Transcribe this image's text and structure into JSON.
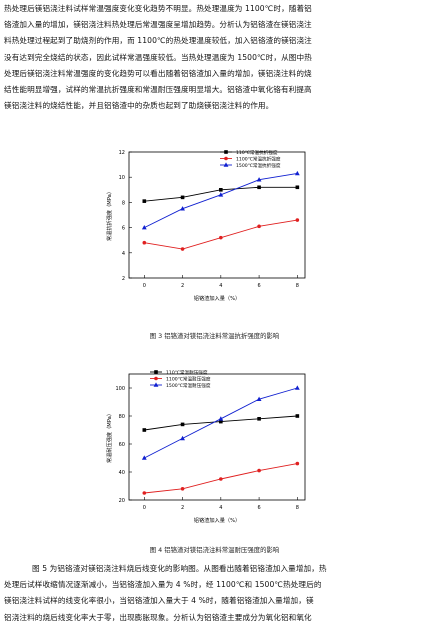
{
  "top_paragraph": [
    "热处理后镁铝浇注料试样常温强度变化变化趋势不明显。热处理温度为 1100℃时，随着铝",
    "铬渣加入量的增加，镁铝浇注料热处理后常温强度呈增加趋势。分析认为铝铬渣在镁铝浇注",
    "料热处理过程起到了助烧剂的作用，而 1100℃的热处理温度较低，加入铝铬渣的镁铝浇注",
    "没有达到完全烧结的状态，因此试样常温强度较低。当热处理温度为 1500℃时，从图中热",
    "处理后镁铝浇注料常温强度的变化趋势可以看出随着铝铬渣加入量的增加，镁铝浇注料的烧",
    "结性能明显增强，试样的常温抗折强度和常温耐压强度明显增大。铝铬渣中氧化铬有利提高",
    "镁铝浇注料的烧结性能，并且铝铬渣中的杂质也起到了助烧镁铝浇注料的作用。"
  ],
  "figure3_caption": "图 3  铝铬渣对镁铝浇注料常温抗折强度的影响",
  "figure4_caption": "图 4  铝铬渣对镁铝浇注料常温耐压强度的影响",
  "bottom_paragraph": [
    "图 5 为铝铬渣对镁铝浇注料烧后线变化的影响图。从图看出随着铝铬渣加入量增加，热",
    "处理后试样收缩情况逐渐减小，当铝铬渣加入量为 4 %时，经 1100℃和 1500℃热处理后的",
    "镁铝浇注料试样的线变化率很小，当铝铬渣加入量大于 4 %时，随着铝铬渣加入量增加，镁",
    "铝浇注料的烧后线变化率大于零，出现膨胀现象。分析认为铝铬渣主要成分为氧化铝和氧化"
  ],
  "chart_data": [
    {
      "type": "line",
      "xlabel": "铝铬渣加入量（%）",
      "ylabel": "常温抗折强度（MPa）",
      "xlim": [
        -0.8,
        8.4
      ],
      "ylim": [
        2,
        12
      ],
      "xticks": [
        "0",
        "2",
        "4",
        "6",
        "8"
      ],
      "yticks": [
        "2",
        "4",
        "6",
        "8",
        "10",
        "12"
      ],
      "x": [
        0,
        2,
        4,
        6,
        8
      ],
      "legend_position": "top-center",
      "series": [
        {
          "name": "110℃常温抗折强度",
          "color": "#000000",
          "marker": "square",
          "values": [
            8.1,
            8.4,
            9.0,
            9.2,
            9.2
          ]
        },
        {
          "name": "1100℃常温抗折强度",
          "color": "#e02020",
          "marker": "circle",
          "values": [
            4.8,
            4.3,
            5.2,
            6.1,
            6.6
          ]
        },
        {
          "name": "1500℃常温抗折强度",
          "color": "#1020d0",
          "marker": "triangle",
          "values": [
            6.0,
            7.5,
            8.6,
            9.8,
            10.3
          ]
        }
      ]
    },
    {
      "type": "line",
      "xlabel": "铝铬渣加入量（%）",
      "ylabel": "常温耐压强度（MPa）",
      "xlim": [
        -0.8,
        8.4
      ],
      "ylim": [
        20,
        110
      ],
      "xticks": [
        "0",
        "2",
        "4",
        "6",
        "8"
      ],
      "yticks": [
        "20",
        "40",
        "60",
        "80",
        "100"
      ],
      "x": [
        0,
        2,
        4,
        6,
        8
      ],
      "legend_position": "top-left",
      "series": [
        {
          "name": "110℃常温耐压强度",
          "color": "#000000",
          "marker": "square",
          "values": [
            70,
            74,
            76,
            78,
            80
          ]
        },
        {
          "name": "1100℃常温耐压强度",
          "color": "#e02020",
          "marker": "circle",
          "values": [
            25,
            28,
            35,
            41,
            46
          ]
        },
        {
          "name": "1500℃常温耐压强度",
          "color": "#1020d0",
          "marker": "triangle",
          "values": [
            50,
            64,
            78,
            92,
            100
          ]
        }
      ]
    }
  ]
}
